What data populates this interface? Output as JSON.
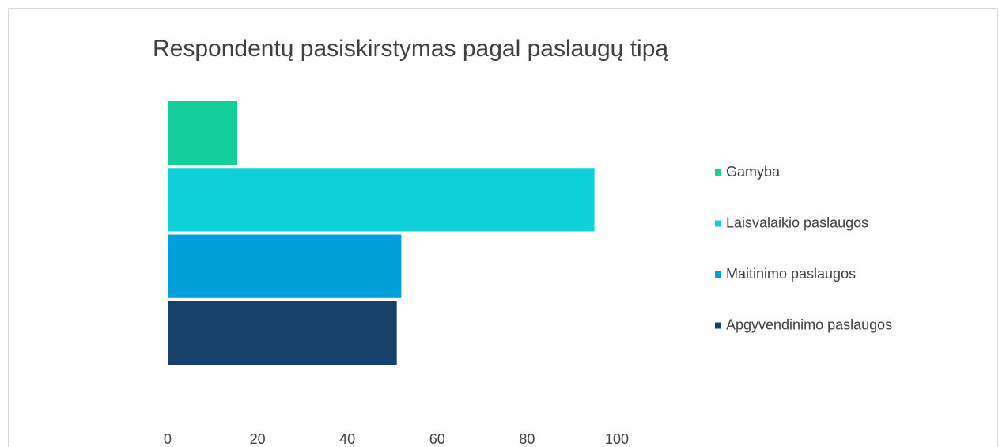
{
  "chart_data": {
    "type": "bar",
    "orientation": "horizontal",
    "title": "Respondentų pasiskirstymas pagal paslaugų tipą",
    "categories": [
      null
    ],
    "series": [
      {
        "name": "Gamyba",
        "color": "#14cf9c",
        "values": [
          15.5
        ]
      },
      {
        "name": "Laisvalaikio paslaugos",
        "color": "#0ed0d8",
        "values": [
          95
        ]
      },
      {
        "name": "Maitinimo paslaugos",
        "color": "#009fda",
        "values": [
          52
        ]
      },
      {
        "name": "Apgyvendinimo paslaugos",
        "color": "#17406b",
        "values": [
          51
        ]
      }
    ],
    "xlim": [
      0,
      100
    ],
    "xticks": [
      0,
      20,
      40,
      60,
      80,
      100
    ],
    "grid": false,
    "legend": "right"
  }
}
